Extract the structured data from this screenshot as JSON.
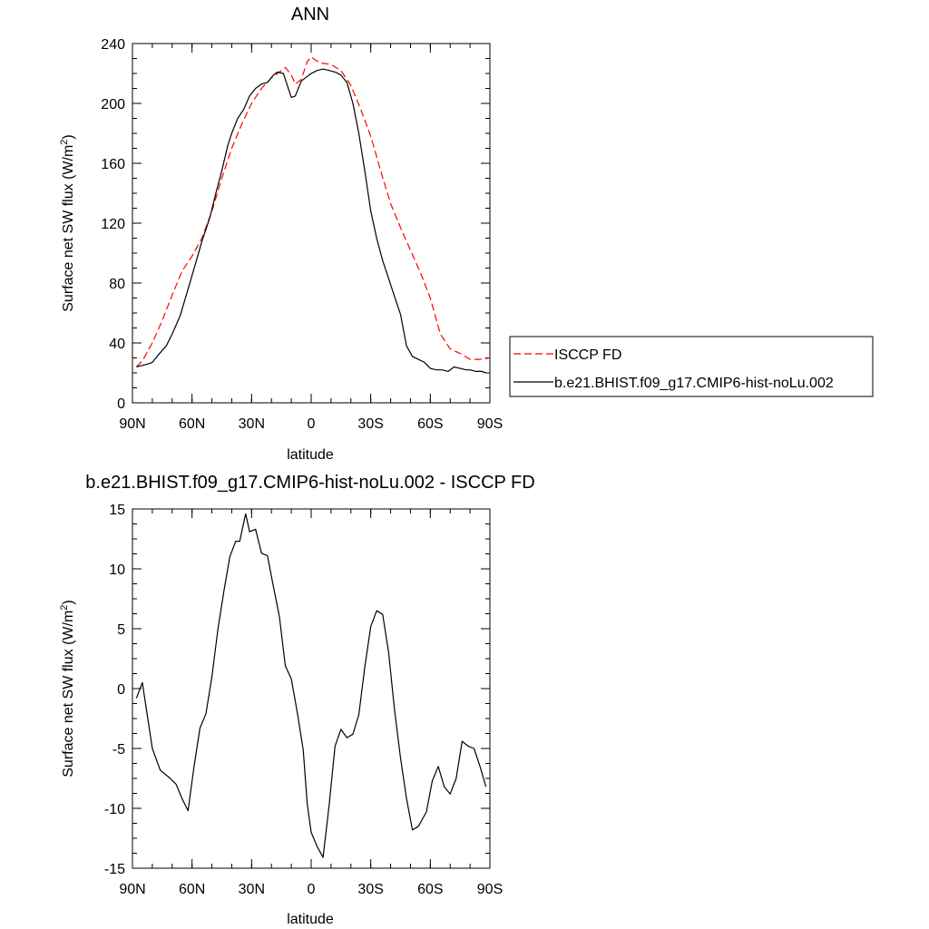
{
  "chart_data": [
    {
      "type": "line",
      "title": "ANN",
      "xlabel": "latitude",
      "ylabel_main": "Surface net SW flux (W/m",
      "ylabel_sup": "2",
      "ylabel_tail": ")",
      "xlim": [
        90,
        -90
      ],
      "ylim": [
        0,
        240
      ],
      "x_ticks": [
        90,
        60,
        30,
        0,
        -30,
        -60,
        -90
      ],
      "x_tick_labels": [
        "90N",
        "60N",
        "30N",
        "0",
        "30S",
        "60S",
        "90S"
      ],
      "y_ticks": [
        0,
        40,
        80,
        120,
        160,
        200,
        240
      ],
      "y_tick_labels": [
        "0",
        "40",
        "80",
        "120",
        "160",
        "200",
        "240"
      ],
      "legend_position": "right",
      "series": [
        {
          "name": "ISCCP FD",
          "color": "#ff0000",
          "style": "dashed",
          "x": [
            88,
            85,
            80,
            75,
            70,
            65,
            60,
            55,
            50,
            45,
            40,
            35,
            30,
            25,
            20,
            15,
            13,
            10,
            8,
            5,
            2,
            0,
            -2,
            -5,
            -10,
            -15,
            -20,
            -25,
            -30,
            -35,
            -40,
            -45,
            -50,
            -55,
            -60,
            -65,
            -70,
            -75,
            -80,
            -85,
            -90
          ],
          "y": [
            24,
            28,
            40,
            55,
            72,
            88,
            98,
            110,
            128,
            150,
            170,
            186,
            200,
            210,
            217,
            222,
            224,
            219,
            213,
            216,
            228,
            231,
            229,
            227,
            226,
            222,
            212,
            196,
            178,
            155,
            133,
            117,
            102,
            87,
            70,
            46,
            36,
            33,
            29,
            29,
            30
          ]
        },
        {
          "name": "b.e21.BHIST.f09_g17.CMIP6-hist-noLu.002",
          "color": "#000000",
          "style": "solid",
          "x": [
            88,
            85,
            82,
            80,
            77,
            73,
            70,
            66,
            62,
            58,
            55,
            51,
            48,
            45,
            42,
            40,
            37,
            34,
            31,
            28,
            25,
            22,
            19,
            17,
            14,
            12,
            10,
            8,
            5,
            2,
            0,
            -3,
            -6,
            -9,
            -12,
            -15,
            -18,
            -21,
            -24,
            -27,
            -30,
            -33,
            -36,
            -39,
            -42,
            -45,
            -48,
            -51,
            -54,
            -57,
            -60,
            -63,
            -66,
            -69,
            -72,
            -75,
            -78,
            -80,
            -83,
            -86,
            -88
          ],
          "y": [
            24,
            25,
            26,
            27,
            32,
            38,
            46,
            58,
            76,
            94,
            108,
            124,
            140,
            155,
            172,
            180,
            190,
            196,
            205,
            210,
            213,
            214,
            219,
            221,
            220,
            212,
            204,
            205,
            215,
            218,
            220,
            222,
            223,
            222,
            221,
            219,
            214,
            200,
            180,
            155,
            128,
            110,
            95,
            83,
            71,
            59,
            38,
            31,
            29,
            27,
            23,
            22,
            22,
            21,
            24,
            23,
            22,
            22,
            21,
            21,
            20
          ]
        }
      ]
    },
    {
      "type": "line",
      "title": "b.e21.BHIST.f09_g17.CMIP6-hist-noLu.002 - ISCCP FD",
      "xlabel": "latitude",
      "ylabel_main": "Surface net SW flux (W/m",
      "ylabel_sup": "2",
      "ylabel_tail": ")",
      "xlim": [
        90,
        -90
      ],
      "ylim": [
        -15,
        15
      ],
      "x_ticks": [
        90,
        60,
        30,
        0,
        -30,
        -60,
        -90
      ],
      "x_tick_labels": [
        "90N",
        "60N",
        "30N",
        "0",
        "30S",
        "60S",
        "90S"
      ],
      "y_ticks": [
        -15,
        -10,
        -5,
        0,
        5,
        10,
        15
      ],
      "y_tick_labels": [
        "-15",
        "-10",
        "-5",
        "0",
        "5",
        "10",
        "15"
      ],
      "series": [
        {
          "color": "#000000",
          "style": "solid",
          "x": [
            88,
            85,
            80,
            76,
            71,
            68,
            65,
            62,
            59,
            56,
            53,
            50,
            47,
            44,
            41,
            38,
            36,
            33,
            31,
            28,
            25,
            22,
            19,
            16,
            13,
            10,
            7,
            4,
            2,
            0,
            -3,
            -6,
            -9,
            -12,
            -15,
            -18,
            -21,
            -24,
            -27,
            -30,
            -33,
            -36,
            -39,
            -42,
            -45,
            -48,
            -51,
            -54,
            -58,
            -61,
            -64,
            -67,
            -70,
            -73,
            -76,
            -79,
            -82,
            -85,
            -88
          ],
          "y": [
            -0.8,
            0.5,
            -5,
            -6.8,
            -7.5,
            -8,
            -9.2,
            -10.2,
            -6.5,
            -3.3,
            -2.1,
            1,
            4.9,
            8.1,
            11,
            12.3,
            12.3,
            14.6,
            13.1,
            13.3,
            11.3,
            11.1,
            8.5,
            6,
            1.9,
            0.8,
            -2,
            -5.1,
            -9.6,
            -12,
            -13.2,
            -14.1,
            -9.8,
            -4.8,
            -3.4,
            -4.1,
            -3.8,
            -2.2,
            1.8,
            5.2,
            6.5,
            6.2,
            3,
            -1.8,
            -5.8,
            -9.2,
            -11.8,
            -11.5,
            -10.3,
            -7.7,
            -6.5,
            -8.2,
            -8.8,
            -7.5,
            -4.4,
            -4.8,
            -5,
            -6.5,
            -8.2
          ]
        }
      ]
    }
  ]
}
